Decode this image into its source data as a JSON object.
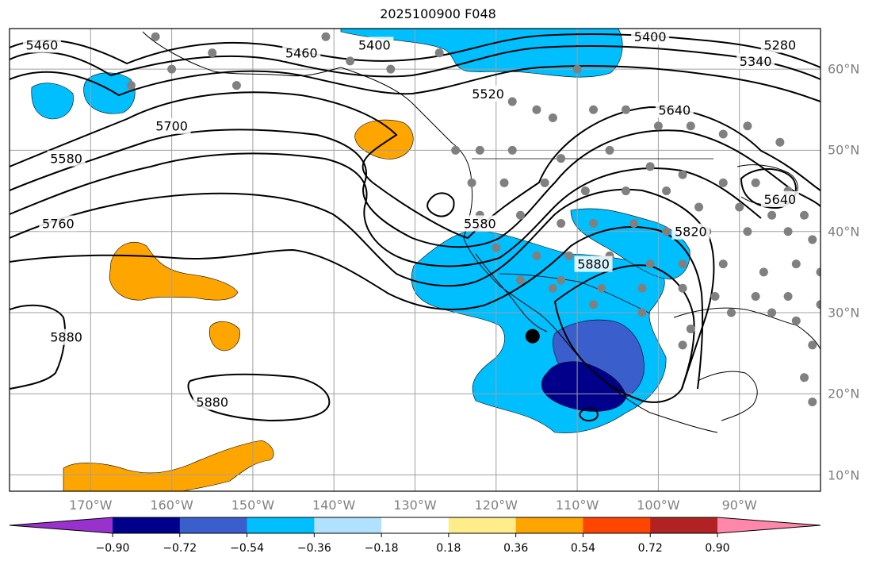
{
  "title": "2025100900 F048",
  "map": {
    "projection": "plate-carree",
    "extent_lon": [
      -180,
      -80
    ],
    "extent_lat": [
      8,
      65
    ],
    "gridlines": true,
    "lon_ticks": [
      {
        "value": -170,
        "label": "170°W"
      },
      {
        "value": -160,
        "label": "160°W"
      },
      {
        "value": -150,
        "label": "150°W"
      },
      {
        "value": -140,
        "label": "140°W"
      },
      {
        "value": -130,
        "label": "130°W"
      },
      {
        "value": -120,
        "label": "120°W"
      },
      {
        "value": -110,
        "label": "110°W"
      },
      {
        "value": -100,
        "label": "100°W"
      },
      {
        "value": -90,
        "label": "90°W"
      }
    ],
    "lat_ticks": [
      {
        "value": 60,
        "label": "60°N"
      },
      {
        "value": 50,
        "label": "50°N"
      },
      {
        "value": 40,
        "label": "40°N"
      },
      {
        "value": 30,
        "label": "30°N"
      },
      {
        "value": 20,
        "label": "20°N"
      },
      {
        "value": 10,
        "label": "10°N"
      }
    ],
    "contour_labels": [
      {
        "text": "5460",
        "lon": -176,
        "lat": 63
      },
      {
        "text": "5460",
        "lon": -144,
        "lat": 62
      },
      {
        "text": "5400",
        "lon": -135,
        "lat": 63
      },
      {
        "text": "5400",
        "lon": -101,
        "lat": 64
      },
      {
        "text": "5340",
        "lon": -88,
        "lat": 61
      },
      {
        "text": "5280",
        "lon": -85,
        "lat": 63
      },
      {
        "text": "5520",
        "lon": -121,
        "lat": 57
      },
      {
        "text": "5640",
        "lon": -98,
        "lat": 55
      },
      {
        "text": "5700",
        "lon": -160,
        "lat": 53
      },
      {
        "text": "5580",
        "lon": -173,
        "lat": 49
      },
      {
        "text": "5760",
        "lon": -174,
        "lat": 41
      },
      {
        "text": "5880",
        "lon": -173,
        "lat": 27
      },
      {
        "text": "5880",
        "lon": -155,
        "lat": 19
      },
      {
        "text": "5580",
        "lon": -122,
        "lat": 41
      },
      {
        "text": "5820",
        "lon": -96,
        "lat": 40
      },
      {
        "text": "5880",
        "lon": -108,
        "lat": 36
      },
      {
        "text": "5640",
        "lon": -85,
        "lat": 44
      }
    ],
    "station_marker": {
      "lon": -115.5,
      "lat": 27.1,
      "color": "#000000"
    },
    "station_dot_color": "#808080",
    "colors": {
      "contour": "#000000",
      "coast": "#000000",
      "grid": "#a0a0a0"
    }
  },
  "colorbar": {
    "boundaries": [
      -0.9,
      -0.72,
      -0.54,
      -0.36,
      -0.18,
      0.18,
      0.36,
      0.54,
      0.72,
      0.9
    ],
    "labels": [
      "−0.90",
      "−0.72",
      "−0.54",
      "−0.36",
      "−0.18",
      "0.18",
      "0.36",
      "0.54",
      "0.72",
      "0.90"
    ],
    "colors": [
      "#9932cc",
      "#00008b",
      "#3a5fcd",
      "#00bfff",
      "#b0e2ff",
      "#ffffff",
      "#ffec8b",
      "#ffa500",
      "#ff4500",
      "#b22222",
      "#ff88aa"
    ],
    "extend": "both"
  }
}
